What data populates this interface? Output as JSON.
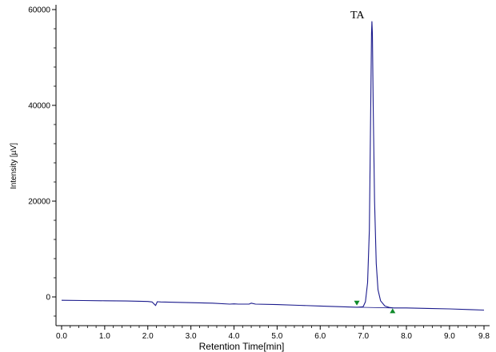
{
  "chart_data": {
    "type": "line",
    "xlabel": "Retention Time[min]",
    "ylabel": "Intensity [µV]",
    "xlim": [
      0.0,
      9.8
    ],
    "ylim": [
      -6500,
      61000
    ],
    "x_ticks": [
      0.0,
      1.0,
      2.0,
      3.0,
      4.0,
      5.0,
      6.0,
      7.0,
      8.0,
      9.0,
      9.8
    ],
    "x_tick_labels": [
      "0.0",
      "1.0",
      "2.0",
      "3.0",
      "4.0",
      "5.0",
      "6.0",
      "7.0",
      "8.0",
      "9.0",
      "9.8"
    ],
    "y_ticks": [
      0,
      20000,
      40000,
      60000
    ],
    "y_tick_labels": [
      "0",
      "20000",
      "40000",
      "60000"
    ],
    "grid": false,
    "series_color": "#1a1a8c",
    "marker_color": "#0f8a2a",
    "series": [
      {
        "x": [
          0.0,
          0.5,
          1.0,
          1.5,
          2.0,
          2.1,
          2.18,
          2.22,
          2.3,
          2.5,
          3.0,
          3.5,
          3.9,
          4.0,
          4.1,
          4.35,
          4.4,
          4.5,
          5.0,
          5.5,
          6.0,
          6.5,
          6.85,
          6.95,
          7.0,
          7.05,
          7.1,
          7.14,
          7.17,
          7.19,
          7.2,
          7.21,
          7.23,
          7.26,
          7.3,
          7.34,
          7.4,
          7.5,
          7.6,
          7.7,
          8.0,
          8.5,
          9.0,
          9.5,
          9.8
        ],
        "y": [
          -700,
          -750,
          -800,
          -850,
          -950,
          -1050,
          -1800,
          -1000,
          -1050,
          -1100,
          -1200,
          -1300,
          -1500,
          -1450,
          -1500,
          -1500,
          -1300,
          -1500,
          -1600,
          -1750,
          -1900,
          -2050,
          -2150,
          -2100,
          -2000,
          -1000,
          3000,
          14000,
          38000,
          55000,
          57500,
          55000,
          40000,
          20000,
          7000,
          1500,
          -800,
          -1900,
          -2200,
          -2300,
          -2300,
          -2400,
          -2500,
          -2650,
          -2750
        ]
      }
    ],
    "annotations": [
      {
        "text": "TA",
        "x": 6.7,
        "y": 59000
      }
    ],
    "integration_markers": [
      {
        "x": 6.85,
        "y": -1300,
        "direction": "down"
      },
      {
        "x": 7.68,
        "y": -2900,
        "direction": "up"
      }
    ]
  }
}
